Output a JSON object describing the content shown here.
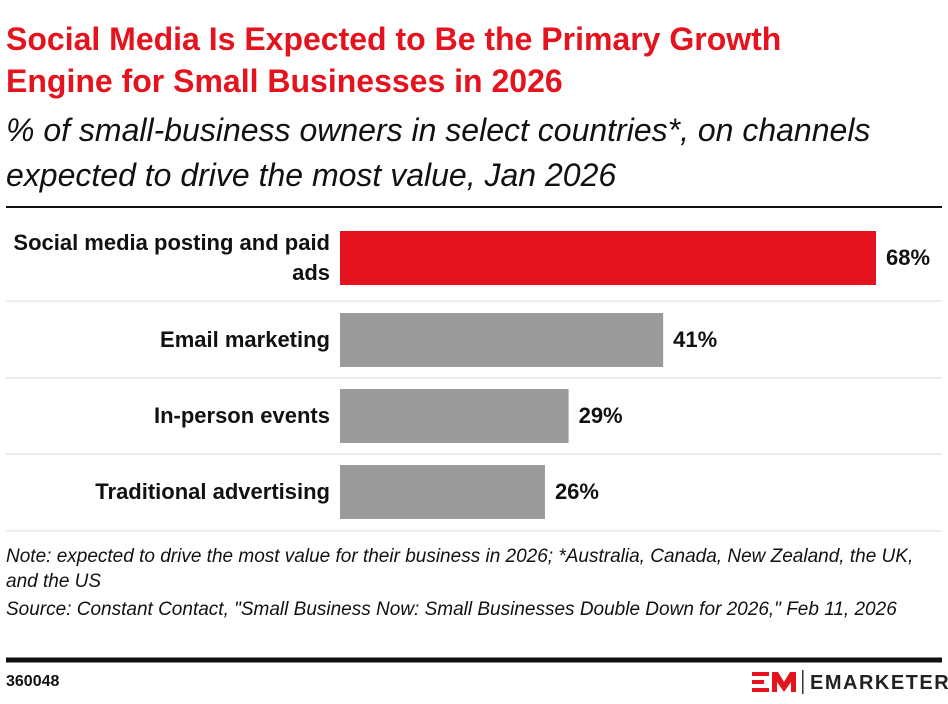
{
  "chart_data": {
    "type": "bar",
    "orientation": "horizontal",
    "title": "Social Media Is Expected to Be the Primary Growth Engine for Small Businesses in 2026",
    "subtitle": "% of small-business owners in select countries*, on channels expected to drive the most value, Jan 2026",
    "categories": [
      "Social media posting and paid ads",
      "Email marketing",
      "In-person events",
      "Traditional advertising"
    ],
    "values": [
      68,
      41,
      29,
      26
    ],
    "value_labels": [
      "68%",
      "41%",
      "29%",
      "26%"
    ],
    "colors": [
      "#e5131d",
      "#9b9b9b",
      "#9b9b9b",
      "#9b9b9b"
    ],
    "xlim": [
      0,
      68
    ],
    "note": "Note: expected to drive the most value for their business in 2026; *Australia, Canada, New Zealand, the UK, and the US",
    "source": "Source: Constant Contact, \"Small Business Now: Small Businesses Double Down for 2026,\" Feb 11, 2026",
    "chart_id": "360048",
    "brand": "EMARKETER"
  }
}
